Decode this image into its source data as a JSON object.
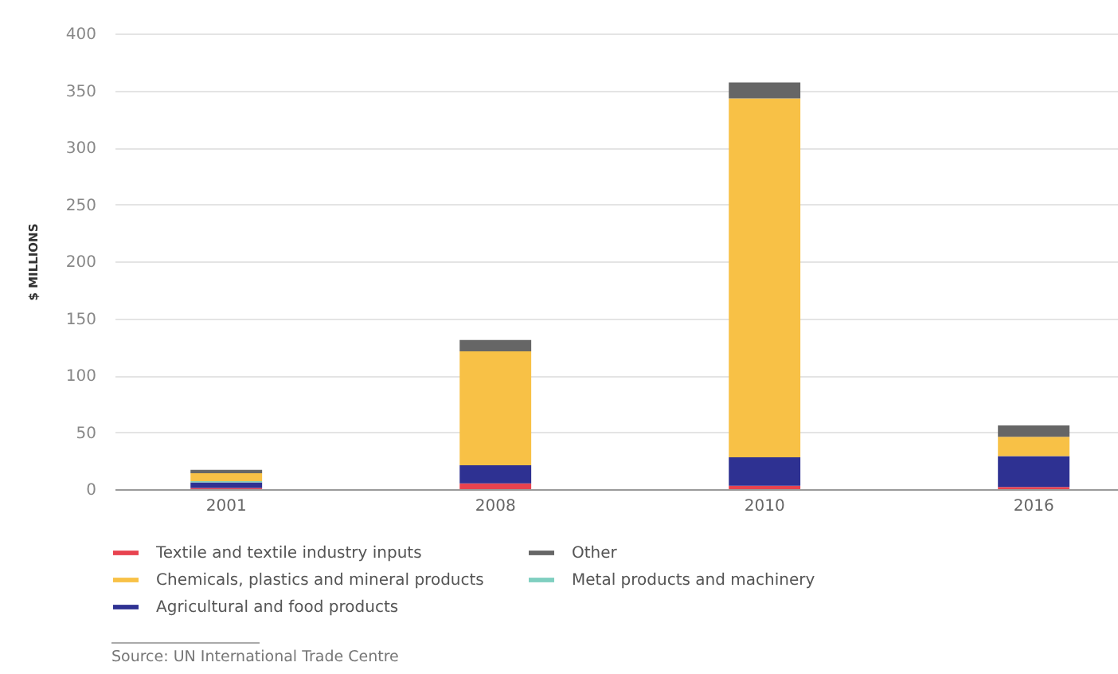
{
  "chart_data": {
    "type": "bar",
    "stacked": true,
    "ylabel": "$ MILLIONS",
    "categories": [
      "2001",
      "2008",
      "2010",
      "2016"
    ],
    "series": [
      {
        "name": "Textile and textile industry inputs",
        "color": "#e8434f",
        "values": [
          1,
          5,
          3,
          2
        ]
      },
      {
        "name": "Agricultural and food products",
        "color": "#2e3192",
        "values": [
          5,
          16,
          25,
          27
        ]
      },
      {
        "name": "Metal products and machinery",
        "color": "#7fcfc0",
        "values": [
          1,
          null,
          null,
          null
        ]
      },
      {
        "name": "Chemicals, plastics and mineral products",
        "color": "#f8c146",
        "values": [
          7,
          100,
          315,
          17
        ]
      },
      {
        "name": "Other",
        "color": "#666666",
        "values": [
          3,
          10,
          14,
          10
        ]
      }
    ],
    "ylim": [
      0,
      400
    ],
    "yticks": [
      0,
      50,
      100,
      150,
      200,
      250,
      300,
      350,
      400
    ],
    "grid": true,
    "legend": "bottom left",
    "annotations": [
      "Source: UN International Trade Centre"
    ]
  }
}
